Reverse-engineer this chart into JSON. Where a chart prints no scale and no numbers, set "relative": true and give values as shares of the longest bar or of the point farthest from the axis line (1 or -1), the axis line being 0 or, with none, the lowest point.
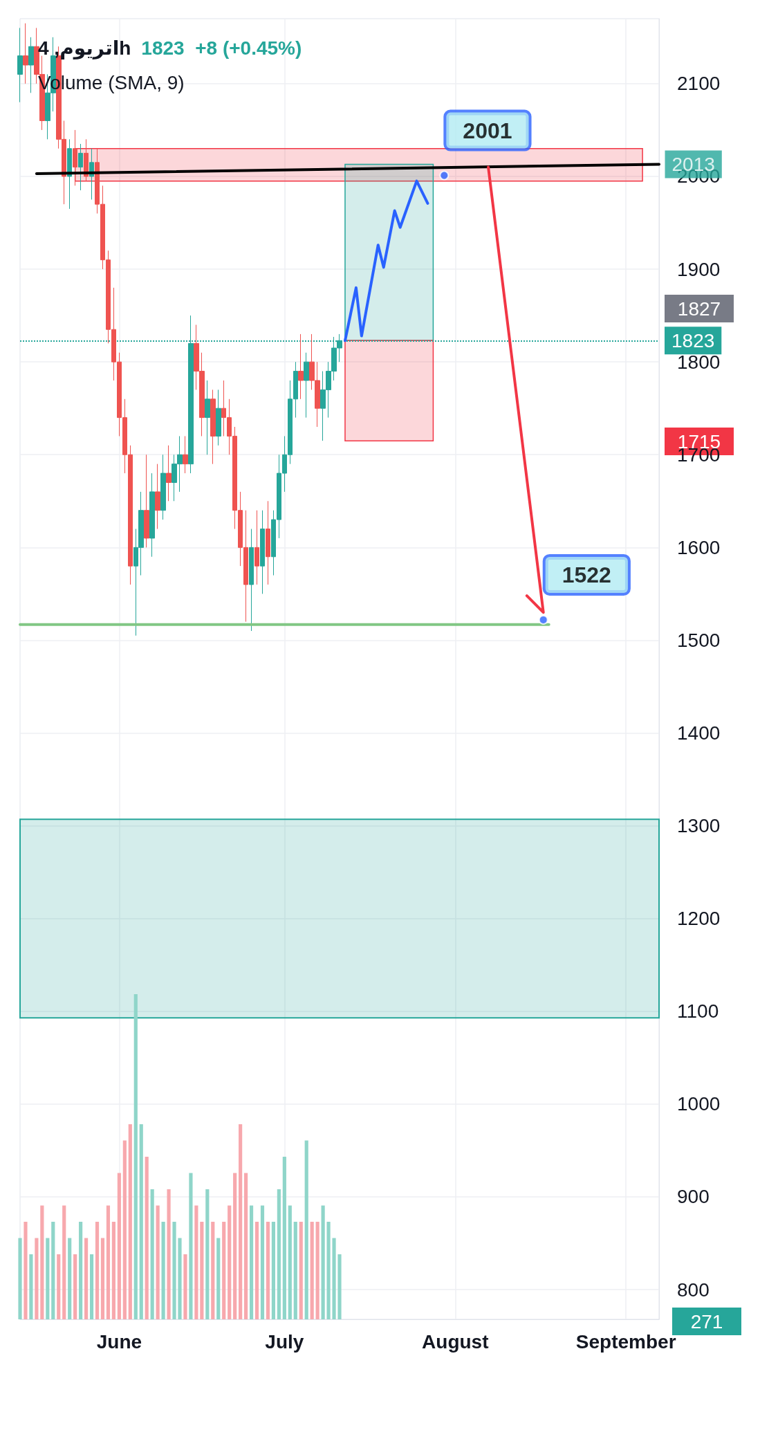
{
  "chart_data": [
    {
      "type": "candlestick",
      "title": "اتریوم, 4h",
      "subtitle": "1823  +8 (+0.45%)",
      "x": [
        "--05-14",
        "--05-15",
        "--05-16",
        "--05-17",
        "--05-18",
        "--05-19",
        "--05-20",
        "--05-21",
        "--05-22",
        "--05-23",
        "--05-24",
        "--05-25",
        "--05-26",
        "--05-27",
        "--05-28",
        "--05-29",
        "--05-30",
        "--05-31",
        "--06-01",
        "--06-02",
        "--06-03",
        "--06-04",
        "--06-05",
        "--06-06",
        "--06-07",
        "--06-08",
        "--06-09",
        "--06-10",
        "--06-11",
        "--06-12",
        "--06-13",
        "--06-14",
        "--06-15",
        "--06-16",
        "--06-17",
        "--06-18",
        "--06-19",
        "--06-20",
        "--06-21",
        "--06-22",
        "--06-23",
        "--06-24",
        "--06-25",
        "--06-26",
        "--06-27",
        "--06-28",
        "--06-29",
        "--06-30",
        "--07-01",
        "--07-02",
        "--07-03",
        "--07-04",
        "--07-05",
        "--07-06",
        "--07-07",
        "--07-08",
        "--07-09",
        "--07-10",
        "--07-11"
      ],
      "ohlc": [
        [
          2110,
          2160,
          2080,
          2130
        ],
        [
          2130,
          2165,
          2100,
          2120
        ],
        [
          2120,
          2150,
          2090,
          2140
        ],
        [
          2140,
          2160,
          2100,
          2110
        ],
        [
          2110,
          2130,
          2050,
          2060
        ],
        [
          2060,
          2110,
          2040,
          2090
        ],
        [
          2090,
          2150,
          2070,
          2130
        ],
        [
          2130,
          2140,
          2030,
          2040
        ],
        [
          2040,
          2060,
          1970,
          2000
        ],
        [
          2000,
          2040,
          1965,
          2030
        ],
        [
          2030,
          2050,
          1990,
          2010
        ],
        [
          2010,
          2035,
          1985,
          2025
        ],
        [
          2025,
          2040,
          1995,
          2000
        ],
        [
          2000,
          2030,
          1975,
          2015
        ],
        [
          2015,
          2030,
          1960,
          1970
        ],
        [
          1970,
          1990,
          1900,
          1910
        ],
        [
          1910,
          1920,
          1820,
          1835
        ],
        [
          1835,
          1880,
          1780,
          1800
        ],
        [
          1800,
          1810,
          1720,
          1740
        ],
        [
          1740,
          1760,
          1680,
          1700
        ],
        [
          1700,
          1710,
          1560,
          1580
        ],
        [
          1580,
          1620,
          1505,
          1600
        ],
        [
          1600,
          1660,
          1570,
          1640
        ],
        [
          1640,
          1700,
          1600,
          1610
        ],
        [
          1610,
          1680,
          1590,
          1660
        ],
        [
          1660,
          1690,
          1620,
          1640
        ],
        [
          1640,
          1700,
          1630,
          1680
        ],
        [
          1680,
          1710,
          1650,
          1670
        ],
        [
          1670,
          1700,
          1650,
          1690
        ],
        [
          1690,
          1720,
          1660,
          1700
        ],
        [
          1700,
          1720,
          1680,
          1690
        ],
        [
          1690,
          1850,
          1680,
          1820
        ],
        [
          1820,
          1840,
          1770,
          1790
        ],
        [
          1790,
          1810,
          1720,
          1740
        ],
        [
          1740,
          1780,
          1700,
          1760
        ],
        [
          1760,
          1770,
          1690,
          1720
        ],
        [
          1720,
          1770,
          1710,
          1750
        ],
        [
          1750,
          1780,
          1720,
          1740
        ],
        [
          1740,
          1760,
          1700,
          1720
        ],
        [
          1720,
          1730,
          1620,
          1640
        ],
        [
          1640,
          1660,
          1580,
          1600
        ],
        [
          1600,
          1640,
          1520,
          1560
        ],
        [
          1560,
          1620,
          1510,
          1600
        ],
        [
          1600,
          1640,
          1560,
          1580
        ],
        [
          1580,
          1640,
          1550,
          1620
        ],
        [
          1620,
          1650,
          1560,
          1590
        ],
        [
          1590,
          1640,
          1570,
          1630
        ],
        [
          1630,
          1700,
          1610,
          1680
        ],
        [
          1680,
          1720,
          1660,
          1700
        ],
        [
          1700,
          1780,
          1690,
          1760
        ],
        [
          1760,
          1800,
          1740,
          1790
        ],
        [
          1790,
          1830,
          1760,
          1780
        ],
        [
          1780,
          1810,
          1740,
          1800
        ],
        [
          1800,
          1830,
          1770,
          1780
        ],
        [
          1780,
          1800,
          1730,
          1750
        ],
        [
          1750,
          1790,
          1715,
          1770
        ],
        [
          1770,
          1800,
          1740,
          1790
        ],
        [
          1790,
          1827,
          1780,
          1815
        ],
        [
          1815,
          1830,
          1800,
          1823
        ]
      ],
      "colors": [
        "#26a69a",
        "#ef5350",
        "#26a69a",
        "#ef5350",
        "#ef5350",
        "#26a69a",
        "#26a69a",
        "#ef5350",
        "#ef5350",
        "#26a69a",
        "#ef5350",
        "#26a69a",
        "#ef5350",
        "#26a69a",
        "#ef5350",
        "#ef5350",
        "#ef5350",
        "#ef5350",
        "#ef5350",
        "#ef5350",
        "#ef5350",
        "#26a69a",
        "#26a69a",
        "#ef5350",
        "#26a69a",
        "#ef5350",
        "#26a69a",
        "#ef5350",
        "#26a69a",
        "#26a69a",
        "#ef5350",
        "#26a69a",
        "#ef5350",
        "#ef5350",
        "#26a69a",
        "#ef5350",
        "#26a69a",
        "#ef5350",
        "#ef5350",
        "#ef5350",
        "#ef5350",
        "#ef5350",
        "#26a69a",
        "#ef5350",
        "#26a69a",
        "#ef5350",
        "#26a69a",
        "#26a69a",
        "#26a69a",
        "#26a69a",
        "#26a69a",
        "#ef5350",
        "#26a69a",
        "#ef5350",
        "#ef5350",
        "#26a69a",
        "#26a69a",
        "#26a69a",
        "#26a69a"
      ],
      "xlim": [
        "--05-14",
        "--09-07"
      ],
      "xticks": [
        {
          "value": "--06-01",
          "label": "June"
        },
        {
          "value": "--07-01",
          "label": "July"
        },
        {
          "value": "--08-01",
          "label": "August"
        },
        {
          "value": "--09-01",
          "label": "September"
        }
      ],
      "ylim": [
        768,
        2170
      ],
      "yticks": [
        800,
        900,
        1000,
        1100,
        1200,
        1300,
        1400,
        1500,
        1600,
        1700,
        1800,
        1900,
        2000,
        2100
      ],
      "grid": true,
      "series": [
        {
          "type": "line",
          "color": "#f23645",
          "x": [
            "--05-24",
            "--09-04"
          ],
          "values": [
            null,
            null
          ],
          "lower": [
            1995,
            1995
          ],
          "upper": [
            2030,
            2030
          ]
        },
        {
          "type": "line",
          "color": "#26a69a",
          "x": [
            "--07-12",
            "--07-28"
          ],
          "values": [
            null,
            null
          ],
          "lower": [
            1823,
            1823
          ],
          "upper": [
            2013,
            2013
          ]
        },
        {
          "type": "line",
          "color": "#f23645",
          "x": [
            "--07-12",
            "--07-28"
          ],
          "values": [
            null,
            null
          ],
          "lower": [
            1715,
            1715
          ],
          "upper": [
            1823,
            1823
          ]
        },
        {
          "type": "line",
          "color": "#000000",
          "x": [
            "--05-17",
            "--09-07"
          ],
          "values": [
            2003,
            2013
          ]
        },
        {
          "type": "line",
          "color": "#81c784",
          "x": [
            "--05-14",
            "--08-18"
          ],
          "values": [
            1517,
            1517
          ]
        },
        {
          "type": "line",
          "color": "#2962ff",
          "x": [
            "--07-12",
            "--07-14",
            "--07-15",
            "--07-18",
            "--07-19",
            "--07-21",
            "--07-22",
            "--07-25",
            "--07-27"
          ],
          "values": [
            1823,
            1880,
            1828,
            1926,
            1902,
            1963,
            1945,
            1995,
            1971
          ]
        },
        {
          "type": "line",
          "color": "#f23645",
          "x": [
            "--08-07",
            "--08-17",
            "--08-14"
          ],
          "values": [
            2010,
            1530,
            1548
          ]
        }
      ],
      "bands": [
        {
          "axis": "y",
          "from": 1093,
          "to": 1307,
          "color": "#26a69a"
        }
      ],
      "ref_lines": [
        {
          "axis": "y",
          "value": 1823,
          "label": "1823",
          "color": "#26a69a",
          "line_style": "dotted"
        }
      ],
      "annotations": [
        {
          "text": "2001",
          "x": "--07-30",
          "y": 2001
        },
        {
          "text": "1522",
          "x": "--08-17",
          "y": 1522
        },
        {
          "text": "2013",
          "x": "--09-07",
          "y": 2013
        },
        "1827",
        "1715"
      ]
    },
    {
      "type": "bar",
      "title": "Volume (SMA, 9)",
      "relative": true,
      "categories": [
        null,
        null,
        null,
        null,
        null,
        null,
        null,
        null,
        null,
        null,
        null,
        null,
        null,
        null,
        null,
        null,
        null,
        null,
        null,
        null,
        null,
        null,
        null,
        null,
        null,
        null,
        null,
        null,
        null,
        null,
        null,
        null,
        null,
        null,
        null,
        null,
        null,
        null,
        null,
        null,
        null,
        null,
        null,
        null,
        null,
        null,
        null,
        null,
        null,
        null,
        null,
        null,
        null,
        null,
        null,
        null,
        null,
        null,
        null
      ],
      "values": [
        0.25,
        0.3,
        0.2,
        0.25,
        0.35,
        0.25,
        0.3,
        0.2,
        0.35,
        0.25,
        0.2,
        0.3,
        0.25,
        0.2,
        0.3,
        0.25,
        0.35,
        0.3,
        0.45,
        0.55,
        0.6,
        1,
        0.6,
        0.5,
        0.4,
        0.35,
        0.3,
        0.4,
        0.3,
        0.25,
        0.2,
        0.45,
        0.35,
        0.3,
        0.4,
        0.3,
        0.25,
        0.3,
        0.35,
        0.45,
        0.6,
        0.45,
        0.35,
        0.3,
        0.35,
        0.3,
        0.3,
        0.4,
        0.5,
        0.35,
        0.3,
        0.3,
        0.55,
        0.3,
        0.3,
        0.35,
        0.3,
        0.25,
        0.2
      ],
      "colors": [
        "#8fd5c9",
        "#f7a8ad",
        "#8fd5c9",
        "#f7a8ad",
        "#f7a8ad",
        "#8fd5c9",
        "#8fd5c9",
        "#f7a8ad",
        "#f7a8ad",
        "#8fd5c9",
        "#f7a8ad",
        "#8fd5c9",
        "#f7a8ad",
        "#8fd5c9",
        "#f7a8ad",
        "#f7a8ad",
        "#f7a8ad",
        "#f7a8ad",
        "#f7a8ad",
        "#f7a8ad",
        "#f7a8ad",
        "#8fd5c9",
        "#8fd5c9",
        "#f7a8ad",
        "#8fd5c9",
        "#f7a8ad",
        "#8fd5c9",
        "#f7a8ad",
        "#8fd5c9",
        "#8fd5c9",
        "#f7a8ad",
        "#8fd5c9",
        "#f7a8ad",
        "#f7a8ad",
        "#8fd5c9",
        "#f7a8ad",
        "#8fd5c9",
        "#f7a8ad",
        "#f7a8ad",
        "#f7a8ad",
        "#f7a8ad",
        "#f7a8ad",
        "#8fd5c9",
        "#f7a8ad",
        "#8fd5c9",
        "#f7a8ad",
        "#8fd5c9",
        "#8fd5c9",
        "#8fd5c9",
        "#8fd5c9",
        "#8fd5c9",
        "#f7a8ad",
        "#8fd5c9",
        "#f7a8ad",
        "#f7a8ad",
        "#8fd5c9",
        "#8fd5c9",
        "#8fd5c9",
        "#8fd5c9"
      ],
      "annotations": [
        "271"
      ]
    }
  ]
}
